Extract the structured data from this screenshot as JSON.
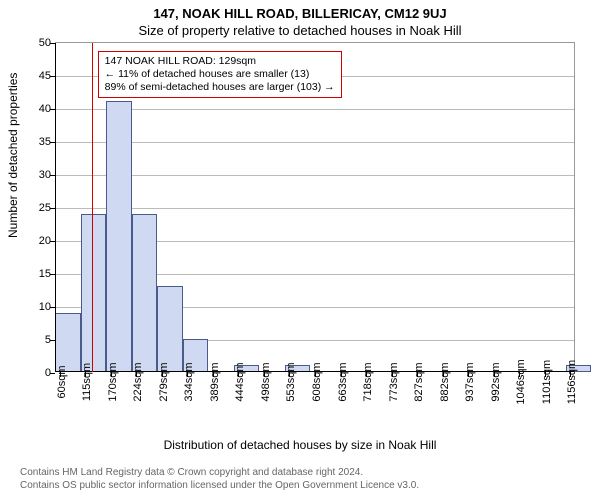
{
  "header": {
    "title1": "147, NOAK HILL ROAD, BILLERICAY, CM12 9UJ",
    "title2": "Size of property relative to detached houses in Noak Hill"
  },
  "chart": {
    "type": "histogram",
    "ylabel": "Number of detached properties",
    "xlabel": "Distribution of detached houses by size in Noak Hill",
    "background_color": "#ffffff",
    "grid_color": "#bbbbbb",
    "axis_color": "#000000",
    "bar_fill": "#cfdaf2",
    "bar_border": "#4a5a8a",
    "marker_color": "#d00000",
    "xtick_step": 55,
    "xlim": [
      50,
      1170
    ],
    "ylim": [
      0,
      50
    ],
    "ytick_step": 5,
    "xtick_labels": [
      "60sqm",
      "115sqm",
      "170sqm",
      "224sqm",
      "279sqm",
      "334sqm",
      "389sqm",
      "444sqm",
      "498sqm",
      "553sqm",
      "608sqm",
      "663sqm",
      "718sqm",
      "773sqm",
      "827sqm",
      "882sqm",
      "937sqm",
      "992sqm",
      "1046sqm",
      "1101sqm",
      "1156sqm"
    ],
    "bars": [
      {
        "bin_start": 50,
        "count": 9
      },
      {
        "bin_start": 105,
        "count": 24
      },
      {
        "bin_start": 160,
        "count": 41
      },
      {
        "bin_start": 215,
        "count": 24
      },
      {
        "bin_start": 270,
        "count": 13
      },
      {
        "bin_start": 325,
        "count": 5
      },
      {
        "bin_start": 380,
        "count": 0
      },
      {
        "bin_start": 435,
        "count": 1
      },
      {
        "bin_start": 490,
        "count": 0
      },
      {
        "bin_start": 545,
        "count": 1
      },
      {
        "bin_start": 600,
        "count": 0
      },
      {
        "bin_start": 655,
        "count": 0
      },
      {
        "bin_start": 710,
        "count": 0
      },
      {
        "bin_start": 765,
        "count": 0
      },
      {
        "bin_start": 820,
        "count": 0
      },
      {
        "bin_start": 875,
        "count": 0
      },
      {
        "bin_start": 930,
        "count": 0
      },
      {
        "bin_start": 985,
        "count": 0
      },
      {
        "bin_start": 1040,
        "count": 0
      },
      {
        "bin_start": 1095,
        "count": 0
      },
      {
        "bin_start": 1150,
        "count": 1
      }
    ],
    "marker_x": 129,
    "annotation": {
      "line1": "147 NOAK HILL ROAD: 129sqm",
      "line2": "← 11% of detached houses are smaller (13)",
      "line3": "89% of semi-detached houses are larger (103) →"
    }
  },
  "footer": {
    "line1": "Contains HM Land Registry data © Crown copyright and database right 2024.",
    "line2": "Contains OS public sector information licensed under the Open Government Licence v3.0."
  }
}
